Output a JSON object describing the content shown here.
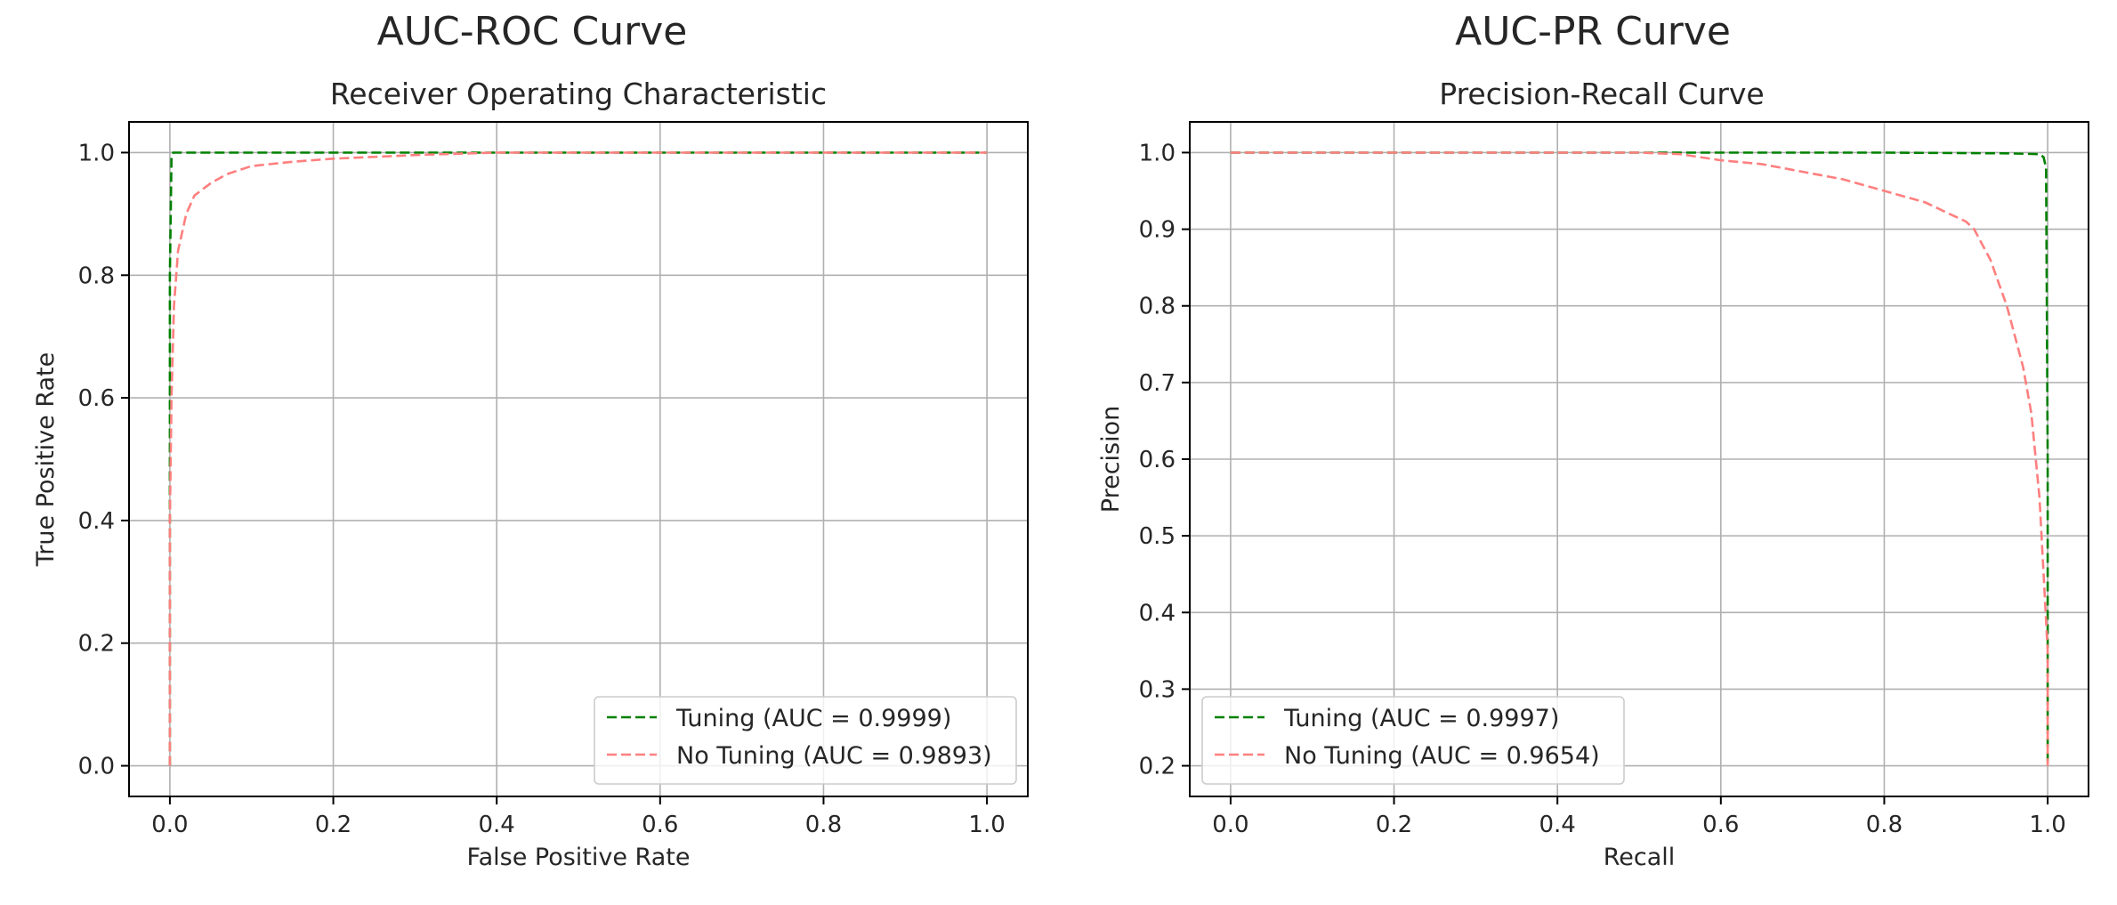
{
  "figure": {
    "colors": {
      "tuning": "#008000",
      "no_tuning": "#ff7f7f",
      "grid": "#b0b0b0",
      "text": "#262626"
    }
  },
  "chart_data": [
    {
      "panel_title": "AUC-ROC Curve",
      "title": "Receiver Operating Characteristic",
      "type": "line",
      "xlabel": "False Positive Rate",
      "ylabel": "True Positive Rate",
      "xlim": [
        -0.05,
        1.05
      ],
      "ylim": [
        -0.05,
        1.05
      ],
      "xticks": [
        0.0,
        0.2,
        0.4,
        0.6,
        0.8,
        1.0
      ],
      "yticks": [
        0.0,
        0.2,
        0.4,
        0.6,
        0.8,
        1.0
      ],
      "xtick_labels": [
        "0.0",
        "0.2",
        "0.4",
        "0.6",
        "0.8",
        "1.0"
      ],
      "ytick_labels": [
        "0.0",
        "0.2",
        "0.4",
        "0.6",
        "0.8",
        "1.0"
      ],
      "grid": true,
      "legend_position": "lower right",
      "series": [
        {
          "name": "Tuning (AUC = 0.9999)",
          "color": "#008000",
          "style": "dashed",
          "x": [
            0.0,
            0.0,
            0.0,
            0.002,
            0.004,
            1.0
          ],
          "y": [
            0.0,
            0.6,
            0.8,
            0.99,
            1.0,
            1.0
          ]
        },
        {
          "name": "No Tuning (AUC = 0.9893)",
          "color": "#ff7f7f",
          "style": "dashed",
          "x": [
            0.0,
            0.0,
            0.002,
            0.005,
            0.01,
            0.02,
            0.03,
            0.05,
            0.07,
            0.1,
            0.15,
            0.2,
            0.25,
            0.3,
            0.35,
            0.4,
            0.6,
            1.0
          ],
          "y": [
            0.0,
            0.4,
            0.6,
            0.75,
            0.84,
            0.9,
            0.93,
            0.95,
            0.965,
            0.978,
            0.985,
            0.99,
            0.993,
            0.996,
            0.998,
            1.0,
            1.0,
            1.0
          ]
        }
      ]
    },
    {
      "panel_title": "AUC-PR Curve",
      "title": "Precision-Recall Curve",
      "type": "line",
      "xlabel": "Recall",
      "ylabel": "Precision",
      "xlim": [
        -0.05,
        1.05
      ],
      "ylim": [
        0.16,
        1.04
      ],
      "xticks": [
        0.0,
        0.2,
        0.4,
        0.6,
        0.8,
        1.0
      ],
      "yticks": [
        0.2,
        0.3,
        0.4,
        0.5,
        0.6,
        0.7,
        0.8,
        0.9,
        1.0
      ],
      "xtick_labels": [
        "0.0",
        "0.2",
        "0.4",
        "0.6",
        "0.8",
        "1.0"
      ],
      "ytick_labels": [
        "0.2",
        "0.3",
        "0.4",
        "0.5",
        "0.6",
        "0.7",
        "0.8",
        "0.9",
        "1.0"
      ],
      "grid": true,
      "legend_position": "lower left",
      "series": [
        {
          "name": "Tuning (AUC = 0.9997)",
          "color": "#008000",
          "style": "dashed",
          "x": [
            0.0,
            0.5,
            0.8,
            0.95,
            0.99,
            0.995,
            0.998,
            1.0,
            1.0,
            1.0
          ],
          "y": [
            1.0,
            1.0,
            1.0,
            0.999,
            0.998,
            0.994,
            0.98,
            0.6,
            0.45,
            0.2
          ]
        },
        {
          "name": "No Tuning (AUC = 0.9654)",
          "color": "#ff7f7f",
          "style": "dashed",
          "x": [
            0.0,
            0.5,
            0.55,
            0.6,
            0.65,
            0.7,
            0.75,
            0.8,
            0.85,
            0.88,
            0.9,
            0.91,
            0.92,
            0.93,
            0.94,
            0.95,
            0.96,
            0.97,
            0.98,
            0.99,
            0.995,
            1.0,
            1.0
          ],
          "y": [
            1.0,
            1.0,
            0.998,
            0.99,
            0.985,
            0.975,
            0.965,
            0.95,
            0.935,
            0.92,
            0.91,
            0.9,
            0.88,
            0.86,
            0.83,
            0.8,
            0.76,
            0.72,
            0.66,
            0.55,
            0.45,
            0.35,
            0.2
          ]
        }
      ]
    }
  ]
}
